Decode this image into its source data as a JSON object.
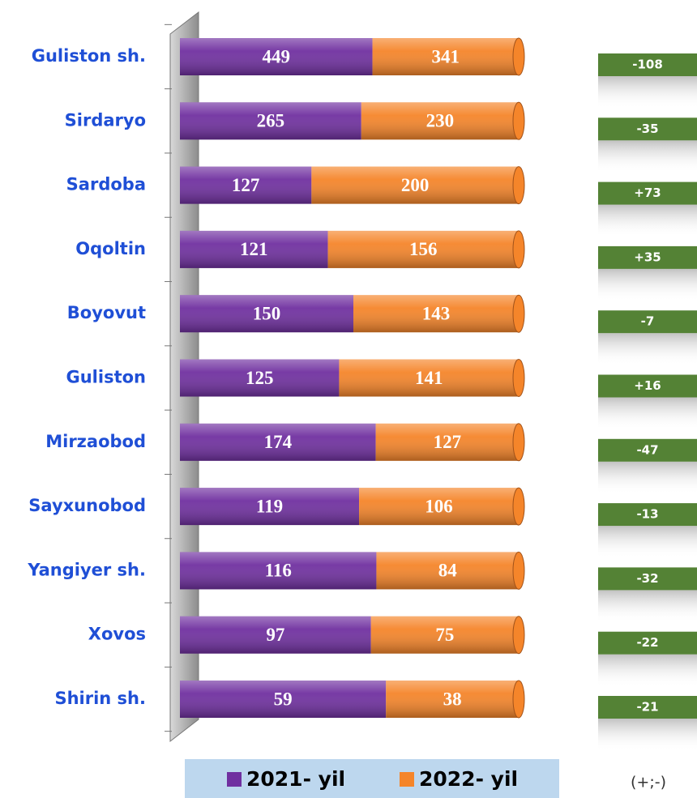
{
  "chart_data": {
    "type": "bar",
    "orientation": "horizontal",
    "stacked": "percent",
    "categories": [
      "Guliston sh.",
      "Sirdaryo",
      "Sardoba",
      "Oqoltin",
      "Boyovut",
      "Guliston",
      "Mirzaobod",
      "Sayxunobod",
      "Yangiyer sh.",
      "Xovos",
      "Shirin sh."
    ],
    "series": [
      {
        "name": "2021- yil",
        "color": "#7030a0",
        "values": [
          449,
          265,
          127,
          121,
          150,
          125,
          174,
          119,
          116,
          97,
          59
        ]
      },
      {
        "name": "2022- yil",
        "color": "#f5852a",
        "values": [
          341,
          230,
          200,
          156,
          143,
          141,
          127,
          106,
          84,
          75,
          38
        ]
      }
    ],
    "differences": {
      "title": "(+;-)",
      "color": "#548235",
      "values": [
        -108,
        -35,
        73,
        35,
        -7,
        16,
        -47,
        -13,
        -32,
        -22,
        -21
      ],
      "value_labels": [
        "-108",
        "-35",
        "+73",
        "+35",
        "-7",
        "+16",
        "-47",
        "-13",
        "-32",
        "-22",
        "-21"
      ]
    },
    "legend": "bottom"
  }
}
